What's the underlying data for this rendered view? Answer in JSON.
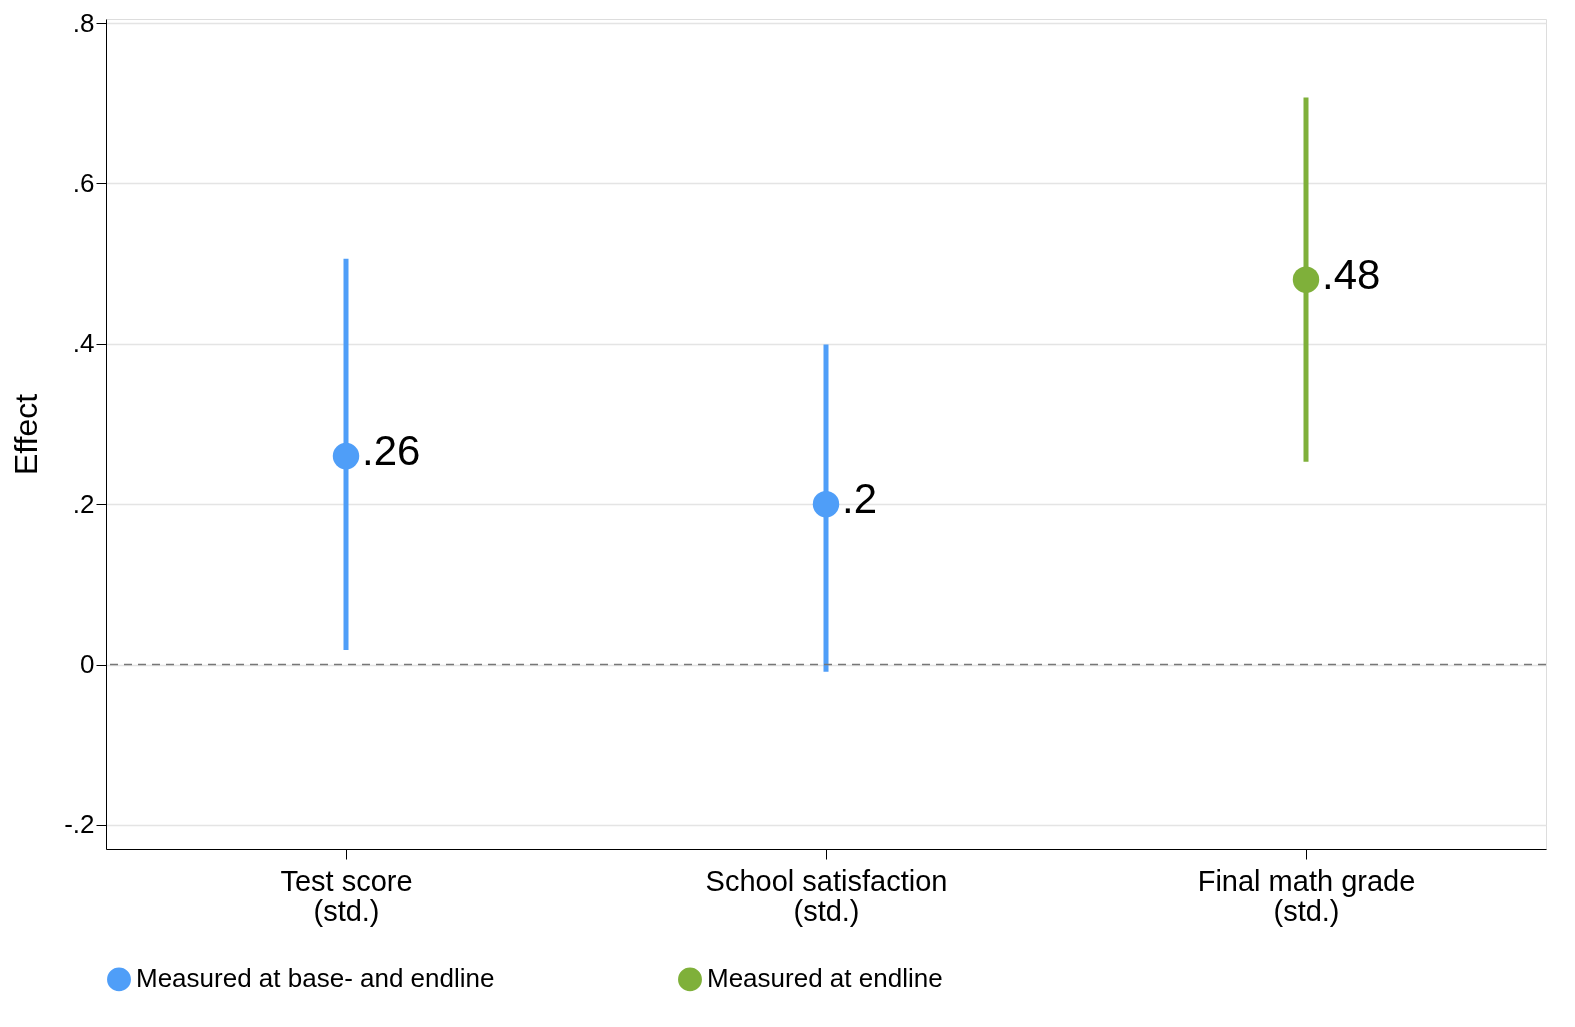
{
  "chart_data": {
    "type": "scatter",
    "ylabel": "Effect",
    "categories": [
      "Test score\n(std.)",
      "School satisfaction\n(std.)",
      "Final math grade\n(std.)"
    ],
    "series": [
      {
        "name": "Measured at base- and endline",
        "color": "#4f9ef8",
        "values": [
          0.26,
          0.2,
          null
        ],
        "errors": [
          [
            0.018,
            0.506
          ],
          [
            -0.009,
            0.399
          ],
          null
        ],
        "value_labels": [
          ".26",
          ".2",
          null
        ]
      },
      {
        "name": "Measured at endline",
        "color": "#7fb03a",
        "values": [
          null,
          null,
          0.48
        ],
        "errors": [
          null,
          null,
          [
            0.253,
            0.707
          ]
        ],
        "value_labels": [
          null,
          null,
          ".48"
        ]
      }
    ],
    "ylim": [
      -0.23,
      0.805
    ],
    "yticks": [
      {
        "value": -0.2,
        "label": "-.2"
      },
      0,
      {
        "value": 0.2,
        "label": ".2"
      },
      {
        "value": 0.4,
        "label": ".4"
      },
      {
        "value": 0.6,
        "label": ".6"
      },
      {
        "value": 0.8,
        "label": ".8"
      }
    ],
    "ref_lines": [
      {
        "axis": "y",
        "value": 0,
        "color": "#777777",
        "line_style": "dashed"
      }
    ],
    "grid": "y",
    "legend": "bottom",
    "marker": "circle"
  }
}
